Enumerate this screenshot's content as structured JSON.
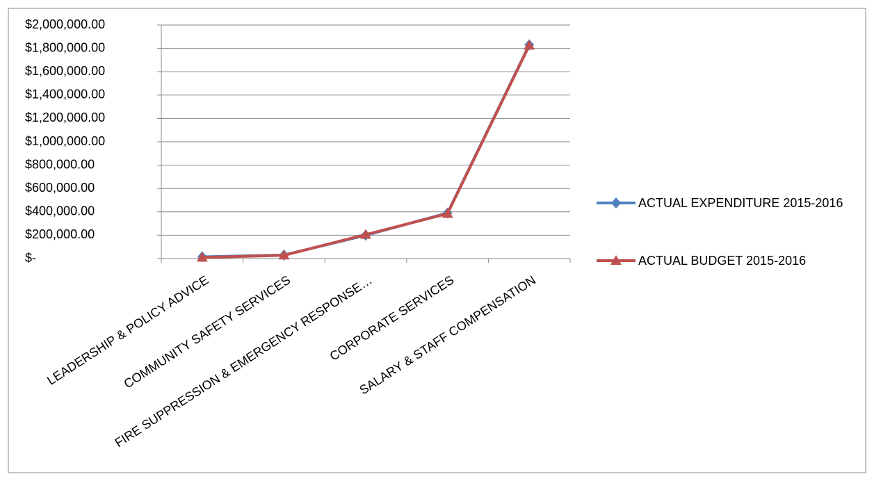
{
  "chart_data": {
    "type": "line",
    "categories": [
      "LEADERSHIP & POLICY ADVICE",
      "COMMUNITY SAFETY SERVICES",
      "FIRE SUPPRESSION & EMERGENCY RESPONSE…",
      "CORPORATE SERVICES",
      "SALARY & STAFF COMPENSATION"
    ],
    "series": [
      {
        "name": "ACTUAL EXPENDITURE 2015-2016",
        "color": "#4f81bd",
        "marker": "diamond",
        "values": [
          15000,
          30000,
          200000,
          390000,
          1830000
        ]
      },
      {
        "name": "ACTUAL BUDGET 2015-2016",
        "color": "#c0504d",
        "marker": "triangle",
        "values": [
          10000,
          28000,
          205000,
          385000,
          1825000
        ]
      }
    ],
    "ylim": [
      0,
      2000000
    ],
    "yticks": [
      {
        "value": 0,
        "label": "$-"
      },
      {
        "value": 200000,
        "label": "$200,000.00"
      },
      {
        "value": 400000,
        "label": "$400,000.00"
      },
      {
        "value": 600000,
        "label": "$600,000.00"
      },
      {
        "value": 800000,
        "label": "$800,000.00"
      },
      {
        "value": 1000000,
        "label": "$1,000,000.00"
      },
      {
        "value": 1200000,
        "label": "$1,200,000.00"
      },
      {
        "value": 1400000,
        "label": "$1,400,000.00"
      },
      {
        "value": 1600000,
        "label": "$1,600,000.00"
      },
      {
        "value": 1800000,
        "label": "$1,800,000.00"
      },
      {
        "value": 2000000,
        "label": "$2,000,000.00"
      }
    ],
    "grid": true,
    "legend": "right"
  }
}
